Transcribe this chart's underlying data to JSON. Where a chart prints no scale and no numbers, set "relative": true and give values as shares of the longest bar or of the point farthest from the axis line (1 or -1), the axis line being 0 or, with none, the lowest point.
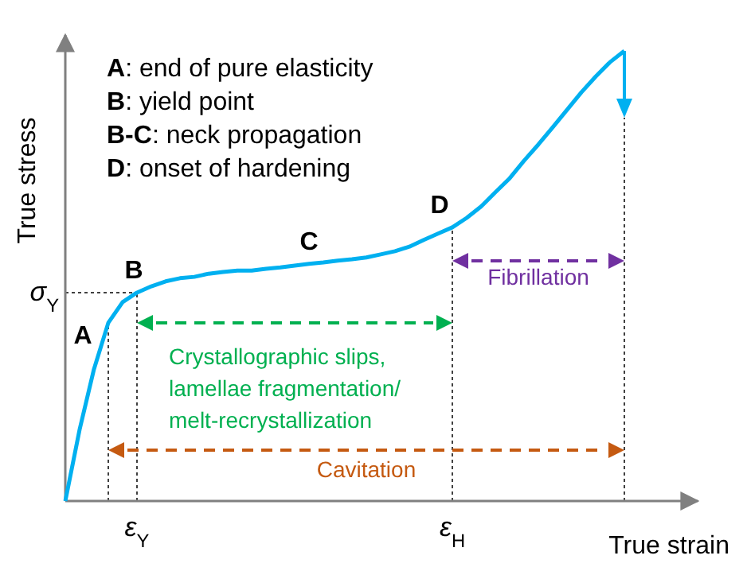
{
  "chart_data": {
    "type": "line",
    "relative": true,
    "xlabel": "True strain",
    "ylabel": "True stress",
    "categories": [
      null,
      null,
      null,
      null,
      null,
      "ε$_{Y}$",
      null,
      null,
      null,
      null,
      null,
      null,
      null,
      null,
      null,
      null,
      null,
      null,
      null,
      null,
      null,
      null,
      null,
      null,
      null,
      null,
      null,
      "ε$_{H}$",
      null,
      null,
      null,
      null,
      null,
      null,
      null,
      null,
      null,
      null,
      null,
      null
    ],
    "series": [
      {
        "color": "#00b0f0",
        "values": [
          0,
          0.159,
          0.293,
          0.396,
          0.442,
          0.463,
          0.477,
          0.488,
          0.495,
          0.498,
          0.505,
          0.509,
          0.512,
          0.512,
          0.516,
          0.519,
          0.523,
          0.527,
          0.53,
          0.534,
          0.537,
          0.541,
          0.548,
          0.555,
          0.565,
          0.58,
          0.594,
          0.608,
          0.629,
          0.654,
          0.686,
          0.717,
          0.756,
          0.792,
          0.83,
          0.869,
          0.908,
          0.943,
          0.975,
          1
        ]
      }
    ],
    "ref_lines": [
      {
        "axis": "y",
        "value": 0.463,
        "label": "σ$_{Y}$",
        "line_style": "dotted",
        "color": "#404040"
      }
    ],
    "annotations": [
      "A",
      "B",
      "C",
      "D",
      "A: end of pure elasticity",
      "B: yield point",
      "B-C: neck propagation",
      "D: onset of hardening",
      "Fibrillation",
      "Crystallographic slips,\nlamellae fragmentation/\nmelt-recrystallization",
      "Cavitation"
    ],
    "line_style": "solid",
    "marker": "none"
  }
}
